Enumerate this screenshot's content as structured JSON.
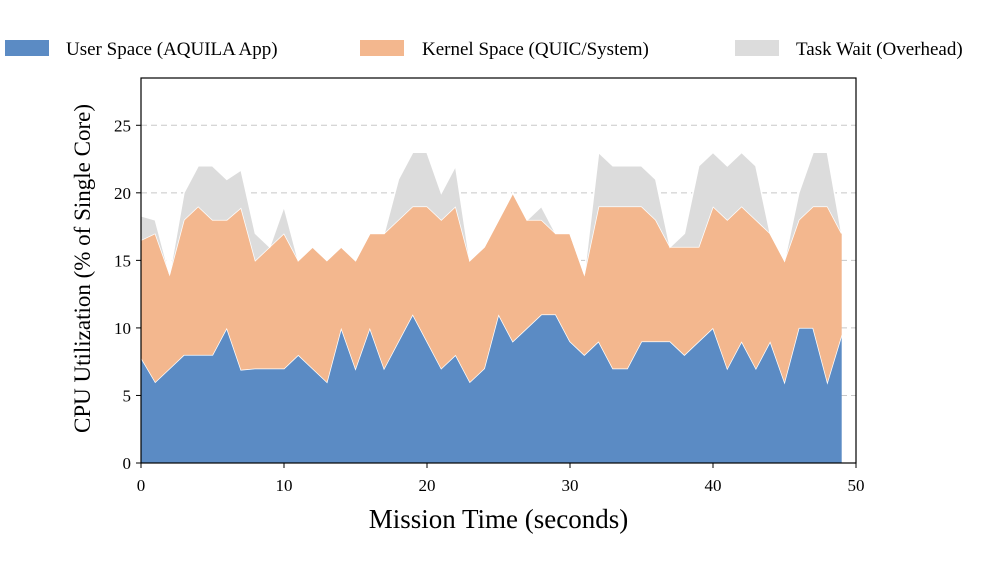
{
  "chart_data": {
    "type": "area",
    "stacked": true,
    "title": "",
    "xlabel": "Mission Time (seconds)",
    "ylabel": "CPU Utilization (% of Single Core)",
    "xlim": [
      0,
      50
    ],
    "ylim": [
      0,
      28.5
    ],
    "xticks": [
      0,
      10,
      20,
      30,
      40,
      50
    ],
    "yticks": [
      0,
      5,
      10,
      15,
      20,
      25
    ],
    "grid": "horizontal dashed",
    "legend_position": "top",
    "x": [
      0,
      1,
      2,
      3,
      4,
      5,
      6,
      7,
      8,
      9,
      10,
      11,
      12,
      13,
      14,
      15,
      16,
      17,
      18,
      19,
      20,
      21,
      22,
      23,
      24,
      25,
      26,
      27,
      28,
      29,
      30,
      31,
      32,
      33,
      34,
      35,
      36,
      37,
      38,
      39,
      40,
      41,
      42,
      43,
      44,
      45,
      46,
      47,
      48,
      49
    ],
    "series": [
      {
        "name": "User Space (AQUILA App)",
        "color": "#5b8bc4",
        "values": [
          7.8,
          6,
          7,
          8,
          8,
          8,
          10,
          6.9,
          7,
          7,
          7,
          8,
          7,
          6,
          10,
          7,
          10,
          7,
          9,
          11,
          9,
          7,
          8,
          6,
          7,
          11,
          9,
          10,
          11,
          11,
          9,
          8,
          9,
          7,
          7,
          9,
          9,
          9,
          8,
          9,
          10,
          7,
          9,
          7,
          9,
          6,
          10,
          10,
          6,
          9.5
        ]
      },
      {
        "name": "Kernel Space (QUIC/System)",
        "color": "#f3b78e",
        "values": [
          8.7,
          11,
          7,
          10,
          11,
          10,
          8,
          12,
          8,
          9,
          10,
          7,
          9,
          9,
          6,
          8,
          7,
          10,
          9,
          8,
          10,
          11,
          11,
          9,
          9,
          7,
          11,
          8,
          7,
          6,
          8,
          6,
          10,
          12,
          12,
          10,
          9,
          7,
          8,
          7,
          9,
          11,
          10,
          11,
          8,
          9,
          8,
          9,
          13,
          7.5
        ]
      },
      {
        "name": "Task Wait (Overhead)",
        "color": "#dcdcdc",
        "values": [
          1.8,
          1,
          0,
          2,
          3,
          4,
          3,
          2.8,
          2,
          0,
          2,
          0,
          0,
          0,
          0,
          0,
          0,
          0,
          3,
          4,
          4,
          2,
          3,
          0,
          0,
          0,
          0,
          0,
          1,
          0,
          0,
          0,
          4,
          3,
          3,
          3,
          3,
          0,
          1,
          6,
          4,
          4,
          4,
          4,
          0,
          0,
          2,
          4,
          4,
          0
        ]
      }
    ]
  }
}
